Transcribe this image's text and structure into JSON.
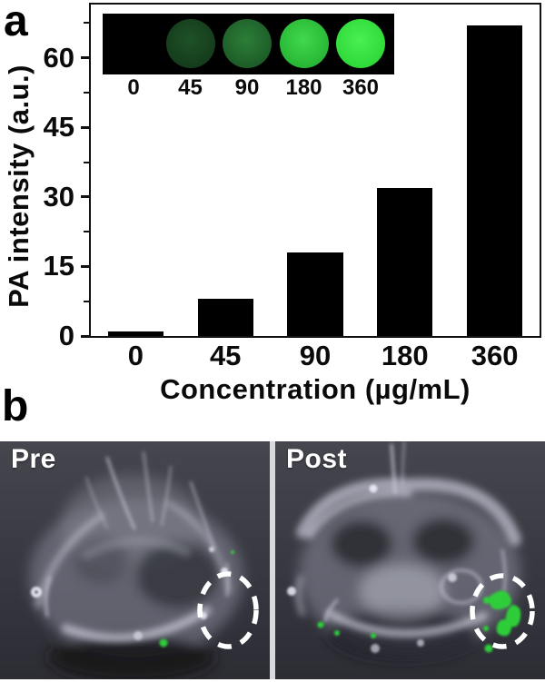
{
  "figure": {
    "panel_a_label": "a",
    "panel_b_label": "b"
  },
  "chart_data": {
    "type": "bar",
    "title": "",
    "categories": [
      "0",
      "45",
      "90",
      "180",
      "360"
    ],
    "values": [
      1,
      8,
      18,
      32,
      67
    ],
    "xlabel": "Concentration (µg/mL)",
    "ylabel": "PA intensity (a.u.)",
    "ylim": [
      0,
      71.5
    ],
    "yticks": [
      0,
      15,
      30,
      45,
      60
    ],
    "minor_ytick_step": 7.5,
    "grid": false,
    "legend": false,
    "bar_color": "#000000",
    "axis_color": "#111111",
    "inset": {
      "background": "#000000",
      "wells": [
        {
          "label": "0",
          "base": null,
          "highlight": null
        },
        {
          "label": "45",
          "base": "#153c1c",
          "highlight": "#1f5226"
        },
        {
          "label": "90",
          "base": "#1d5c28",
          "highlight": "#2c7e38"
        },
        {
          "label": "180",
          "base": "#28b635",
          "highlight": "#40d84d"
        },
        {
          "label": "360",
          "base": "#2ed938",
          "highlight": "#4bef53"
        }
      ]
    }
  },
  "panel_b": {
    "images": [
      {
        "label": "Pre"
      },
      {
        "label": "Post"
      }
    ],
    "marker_color": "#2fce3b",
    "roi_stroke_color": "#ffffff"
  }
}
